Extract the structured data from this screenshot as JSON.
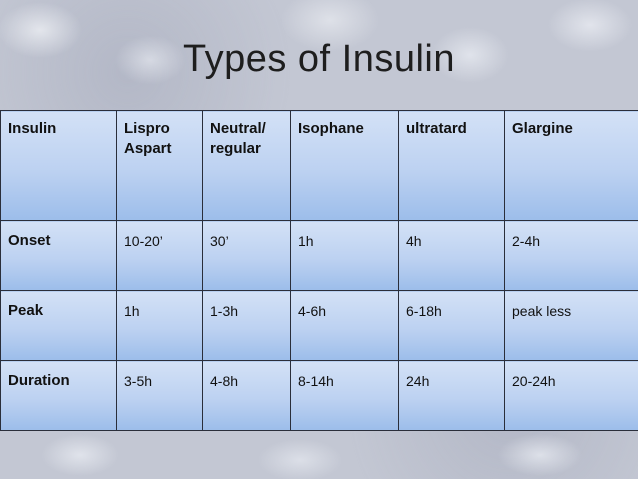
{
  "title": "Types of Insulin",
  "table": {
    "header": [
      "Insulin",
      "Lispro\nAspart",
      "Neutral/\nregular",
      "Isophane",
      "ultratard",
      "Glargine"
    ],
    "rows": [
      {
        "label": "Onset",
        "values": [
          "10-20’",
          "30’",
          "1h",
          "4h",
          "2-4h"
        ]
      },
      {
        "label": "Peak",
        "values": [
          "1h",
          "1-3h",
          "4-6h",
          "6-18h",
          "peak less"
        ]
      },
      {
        "label": "Duration",
        "values": [
          "3-5h",
          "4-8h",
          "8-14h",
          "24h",
          "20-24h"
        ]
      }
    ]
  }
}
